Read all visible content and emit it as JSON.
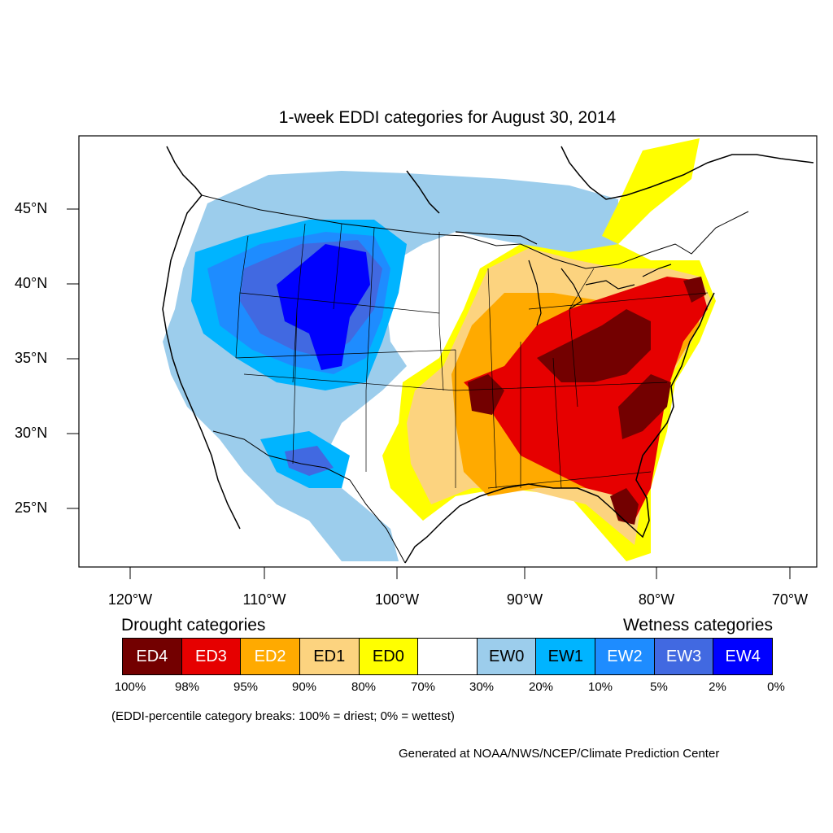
{
  "title": "1-week EDDI categories for August 30, 2014",
  "lat_labels": [
    "45°N",
    "40°N",
    "35°N",
    "30°N",
    "25°N"
  ],
  "lon_labels": [
    "120°W",
    "110°W",
    "100°W",
    "90°W",
    "80°W",
    "70°W"
  ],
  "drought_heading": "Drought categories",
  "wetness_heading": "Wetness categories",
  "legend": [
    {
      "label": "ED4",
      "color": "#730000",
      "text_color": "#ffffff"
    },
    {
      "label": "ED3",
      "color": "#e60000",
      "text_color": "#ffffff"
    },
    {
      "label": "ED2",
      "color": "#ffaa00",
      "text_color": "#ffffff"
    },
    {
      "label": "ED1",
      "color": "#fcd37f",
      "text_color": "#000000"
    },
    {
      "label": "ED0",
      "color": "#ffff00",
      "text_color": "#000000"
    },
    {
      "label": "",
      "color": "#ffffff",
      "text_color": "#000000"
    },
    {
      "label": "EW0",
      "color": "#9ccdec",
      "text_color": "#000000"
    },
    {
      "label": "EW1",
      "color": "#00b4ff",
      "text_color": "#000000"
    },
    {
      "label": "EW2",
      "color": "#1e8cff",
      "text_color": "#ffffff"
    },
    {
      "label": "EW3",
      "color": "#4169e1",
      "text_color": "#ffffff"
    },
    {
      "label": "EW4",
      "color": "#0000ff",
      "text_color": "#ffffff"
    }
  ],
  "percent_labels": [
    "100%",
    "98%",
    "95%",
    "90%",
    "80%",
    "70%",
    "30%",
    "20%",
    "10%",
    "5%",
    "2%",
    "0%"
  ],
  "note": "(EDDI-percentile category breaks: 100% = driest; 0% = wettest)",
  "credit": "Generated at NOAA/NWS/NCEP/Climate Prediction Center"
}
